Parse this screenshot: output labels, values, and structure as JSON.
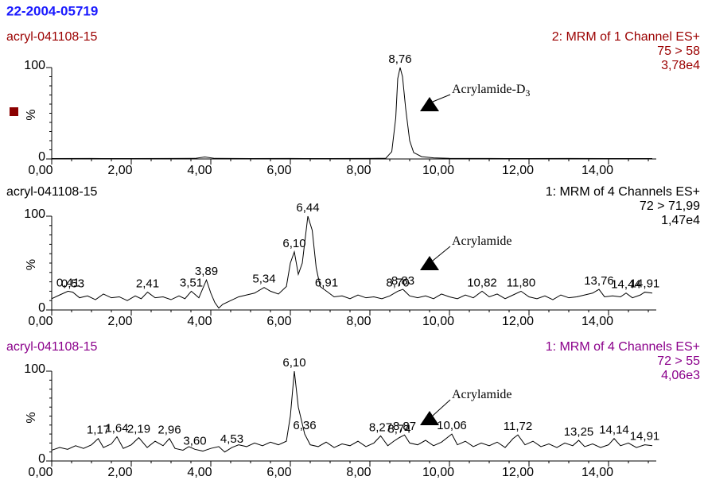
{
  "title": "22-2004-05719",
  "chart_data": [
    {
      "type": "line",
      "color": "#9b0000",
      "sample": "acryl-041108-15",
      "function": "2: MRM of 1 Channel ES+",
      "transition": "75 > 58",
      "intensity": "3,78e4",
      "ylabel": "%",
      "annotation": {
        "text": "Acrylamide-D",
        "subscript": "3"
      },
      "xlim": [
        0,
        15.2
      ],
      "ylim": [
        0,
        100
      ],
      "xticks": [
        {
          "value": 0,
          "label": "0,00"
        },
        {
          "value": 2,
          "label": "2,00"
        },
        {
          "value": 4,
          "label": "4,00"
        },
        {
          "value": 6,
          "label": "6,00"
        },
        {
          "value": 8,
          "label": "8,00"
        },
        {
          "value": 10,
          "label": "10,00"
        },
        {
          "value": 12,
          "label": "12,00"
        },
        {
          "value": 14,
          "label": "14,00"
        }
      ],
      "yticks": [
        0,
        100
      ],
      "x": [
        0,
        1,
        2,
        3,
        3.6,
        3.85,
        4.1,
        5,
        6,
        7,
        8,
        8.4,
        8.55,
        8.65,
        8.7,
        8.76,
        8.82,
        8.9,
        9.0,
        9.1,
        9.3,
        9.6,
        10,
        11,
        12,
        13,
        14,
        15.1
      ],
      "values": [
        0.4,
        0.5,
        0.4,
        0.5,
        0.6,
        2.2,
        0.6,
        0.4,
        0.5,
        0.4,
        0.5,
        0.8,
        8,
        45,
        88,
        100,
        90,
        55,
        20,
        7,
        2.5,
        1.2,
        0.7,
        0.5,
        0.4,
        0.5,
        0.4,
        0.4
      ],
      "peaks": [
        {
          "value": 8.76,
          "label": "8,76"
        }
      ]
    },
    {
      "type": "line",
      "color": "#000000",
      "sample": "acryl-041108-15",
      "function": "1: MRM of 4 Channels ES+",
      "transition": "72 > 71,99",
      "intensity": "1,47e4",
      "ylabel": "%",
      "annotation": {
        "text": "Acrylamide"
      },
      "xlim": [
        0,
        15.2
      ],
      "ylim": [
        0,
        100
      ],
      "xticks": [
        {
          "value": 0,
          "label": "0,00"
        },
        {
          "value": 2,
          "label": "2,00"
        },
        {
          "value": 4,
          "label": "4,00"
        },
        {
          "value": 6,
          "label": "6,00"
        },
        {
          "value": 8,
          "label": "8,00"
        },
        {
          "value": 10,
          "label": "10,00"
        },
        {
          "value": 12,
          "label": "12,00"
        },
        {
          "value": 14,
          "label": "14,00"
        }
      ],
      "yticks": [
        0,
        100
      ],
      "x": [
        0,
        0.2,
        0.41,
        0.53,
        0.7,
        0.9,
        1.1,
        1.3,
        1.5,
        1.7,
        1.9,
        2.1,
        2.25,
        2.41,
        2.6,
        2.8,
        3.0,
        3.2,
        3.35,
        3.51,
        3.7,
        3.89,
        4.0,
        4.1,
        4.2,
        4.3,
        4.5,
        4.7,
        4.9,
        5.1,
        5.34,
        5.5,
        5.7,
        5.9,
        6.0,
        6.1,
        6.2,
        6.3,
        6.44,
        6.55,
        6.65,
        6.75,
        6.91,
        7.1,
        7.3,
        7.5,
        7.7,
        7.9,
        8.1,
        8.3,
        8.5,
        8.7,
        8.83,
        9.0,
        9.2,
        9.4,
        9.6,
        9.8,
        10.0,
        10.2,
        10.4,
        10.6,
        10.82,
        11.0,
        11.2,
        11.4,
        11.6,
        11.8,
        12.0,
        12.2,
        12.4,
        12.6,
        12.8,
        13.0,
        13.2,
        13.4,
        13.6,
        13.76,
        13.9,
        14.1,
        14.3,
        14.44,
        14.6,
        14.8,
        14.91,
        15.1
      ],
      "values": [
        12,
        16,
        20,
        19,
        13,
        15,
        11,
        17,
        13,
        14,
        10,
        15,
        12,
        19,
        13,
        14,
        11,
        15,
        12,
        20,
        13,
        32,
        18,
        8,
        2,
        6,
        10,
        14,
        16,
        18,
        24,
        20,
        17,
        25,
        50,
        62,
        38,
        50,
        100,
        85,
        45,
        25,
        20,
        14,
        15,
        12,
        16,
        13,
        14,
        12,
        15,
        20,
        22,
        15,
        13,
        15,
        12,
        17,
        14,
        12,
        16,
        13,
        20,
        14,
        17,
        12,
        16,
        20,
        14,
        12,
        15,
        11,
        16,
        13,
        14,
        16,
        18,
        22,
        14,
        15,
        14,
        18,
        13,
        16,
        19,
        18
      ],
      "peaks": [
        {
          "value": 0.41,
          "label": "0,41"
        },
        {
          "value": 0.53,
          "label": "0,53"
        },
        {
          "value": 2.41,
          "label": "2,41"
        },
        {
          "value": 3.51,
          "label": "3,51"
        },
        {
          "value": 3.89,
          "label": "3,89"
        },
        {
          "value": 5.34,
          "label": "5,34"
        },
        {
          "value": 6.1,
          "label": "6,10"
        },
        {
          "value": 6.44,
          "label": "6,44"
        },
        {
          "value": 6.91,
          "label": "6,91"
        },
        {
          "value": 8.7,
          "label": "8,70"
        },
        {
          "value": 8.83,
          "label": "8,83"
        },
        {
          "value": 10.82,
          "label": "10,82"
        },
        {
          "value": 11.8,
          "label": "11,80"
        },
        {
          "value": 13.76,
          "label": "13,76"
        },
        {
          "value": 14.44,
          "label": "14,44"
        },
        {
          "value": 14.91,
          "label": "14,91"
        }
      ]
    },
    {
      "type": "line",
      "color": "#8b008b",
      "sample": "acryl-041108-15",
      "function": "1: MRM of 4 Channels ES+",
      "transition": "72 > 55",
      "intensity": "4,06e3",
      "ylabel": "%",
      "annotation": {
        "text": "Acrylamide"
      },
      "xlim": [
        0,
        15.2
      ],
      "ylim": [
        0,
        100
      ],
      "xticks": [
        {
          "value": 0,
          "label": "0,00"
        },
        {
          "value": 2,
          "label": "2,00"
        },
        {
          "value": 4,
          "label": "4,00"
        },
        {
          "value": 6,
          "label": "6,00"
        },
        {
          "value": 8,
          "label": "8,00"
        },
        {
          "value": 10,
          "label": "10,00"
        },
        {
          "value": 12,
          "label": "12,00"
        },
        {
          "value": 14,
          "label": "14,00"
        }
      ],
      "yticks": [
        0,
        100
      ],
      "x": [
        0,
        0.2,
        0.4,
        0.6,
        0.8,
        1.0,
        1.17,
        1.3,
        1.5,
        1.64,
        1.8,
        2.0,
        2.19,
        2.4,
        2.6,
        2.8,
        2.96,
        3.1,
        3.3,
        3.45,
        3.6,
        3.8,
        4.0,
        4.2,
        4.35,
        4.53,
        4.7,
        4.9,
        5.1,
        5.3,
        5.5,
        5.7,
        5.9,
        6.0,
        6.1,
        6.2,
        6.36,
        6.5,
        6.7,
        6.9,
        7.1,
        7.3,
        7.5,
        7.7,
        7.9,
        8.1,
        8.27,
        8.45,
        8.6,
        8.74,
        8.87,
        9.0,
        9.2,
        9.4,
        9.6,
        9.8,
        10.06,
        10.2,
        10.4,
        10.6,
        10.8,
        11.0,
        11.2,
        11.4,
        11.6,
        11.72,
        11.9,
        12.1,
        12.3,
        12.5,
        12.7,
        12.9,
        13.1,
        13.25,
        13.4,
        13.6,
        13.8,
        14.0,
        14.14,
        14.3,
        14.5,
        14.7,
        14.91,
        15.1
      ],
      "values": [
        12,
        15,
        13,
        17,
        14,
        18,
        25,
        15,
        19,
        27,
        14,
        18,
        26,
        15,
        22,
        17,
        25,
        14,
        12,
        16,
        13,
        11,
        14,
        16,
        10,
        15,
        18,
        16,
        20,
        17,
        21,
        18,
        22,
        50,
        100,
        60,
        30,
        18,
        16,
        21,
        15,
        19,
        17,
        22,
        16,
        20,
        28,
        17,
        22,
        26,
        29,
        20,
        18,
        23,
        17,
        21,
        30,
        18,
        22,
        16,
        20,
        17,
        21,
        15,
        25,
        29,
        18,
        22,
        16,
        19,
        15,
        20,
        17,
        23,
        16,
        19,
        15,
        18,
        25,
        17,
        20,
        15,
        18,
        17
      ],
      "peaks": [
        {
          "value": 1.17,
          "label": "1,17"
        },
        {
          "value": 1.64,
          "label": "1,64"
        },
        {
          "value": 2.19,
          "label": "2,19"
        },
        {
          "value": 2.96,
          "label": "2,96"
        },
        {
          "value": 3.6,
          "label": "3,60"
        },
        {
          "value": 4.53,
          "label": "4,53"
        },
        {
          "value": 6.1,
          "label": "6,10"
        },
        {
          "value": 6.36,
          "label": "6,36"
        },
        {
          "value": 8.27,
          "label": "8,27"
        },
        {
          "value": 8.74,
          "label": "8,74"
        },
        {
          "value": 8.87,
          "label": "8,87"
        },
        {
          "value": 10.06,
          "label": "10,06"
        },
        {
          "value": 11.72,
          "label": "11,72"
        },
        {
          "value": 13.25,
          "label": "13,25"
        },
        {
          "value": 14.14,
          "label": "14,14"
        },
        {
          "value": 14.91,
          "label": "14,91"
        }
      ]
    }
  ]
}
